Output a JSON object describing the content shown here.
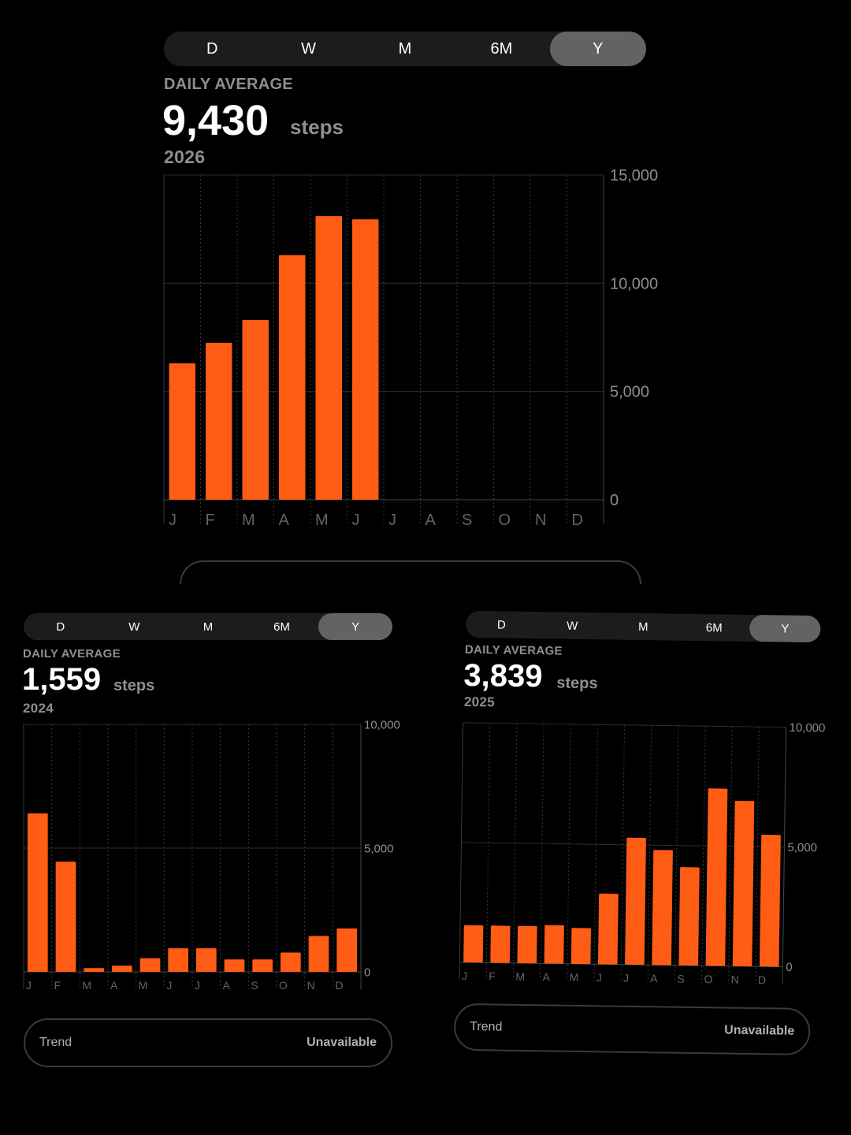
{
  "segments": [
    "D",
    "W",
    "M",
    "6M",
    "Y"
  ],
  "selected_segment": "Y",
  "accent_color": "#ff5c16",
  "main": {
    "label": "DAILY AVERAGE",
    "value": "9,430",
    "unit": "steps",
    "period": "2026"
  },
  "left": {
    "label": "DAILY AVERAGE",
    "value": "1,559",
    "unit": "steps",
    "period": "2024",
    "trend_label": "Trend",
    "trend_value": "Unavailable"
  },
  "right": {
    "label": "DAILY AVERAGE",
    "value": "3,839",
    "unit": "steps",
    "period": "2025",
    "trend_label": "Trend",
    "trend_value": "Unavailable"
  },
  "chart_data": [
    {
      "type": "bar",
      "categories": [
        "J",
        "F",
        "M",
        "A",
        "M",
        "J",
        "J",
        "A",
        "S",
        "O",
        "N",
        "D"
      ],
      "values": [
        6300,
        7250,
        8300,
        11300,
        13100,
        12950,
        null,
        null,
        null,
        null,
        null,
        null
      ],
      "ylim": [
        0,
        15000
      ],
      "yticks": [
        "0",
        "5,000",
        "10,000",
        "15,000"
      ],
      "ytick_values": [
        0,
        5000,
        10000,
        15000
      ],
      "grid": true
    },
    {
      "type": "bar",
      "categories": [
        "J",
        "F",
        "M",
        "A",
        "M",
        "J",
        "J",
        "A",
        "S",
        "O",
        "N",
        "D"
      ],
      "values": [
        6400,
        4450,
        150,
        250,
        550,
        950,
        950,
        500,
        500,
        780,
        1450,
        1750
      ],
      "ylim": [
        0,
        10000
      ],
      "yticks": [
        "0",
        "5,000",
        "10,000"
      ],
      "ytick_values": [
        0,
        5000,
        10000
      ],
      "grid": true
    },
    {
      "type": "bar",
      "categories": [
        "J",
        "F",
        "M",
        "A",
        "M",
        "J",
        "J",
        "A",
        "S",
        "O",
        "N",
        "D"
      ],
      "values": [
        1550,
        1550,
        1550,
        1600,
        1500,
        2950,
        5300,
        4800,
        4100,
        7400,
        6900,
        5500
      ],
      "ylim": [
        0,
        10000
      ],
      "yticks": [
        "0",
        "5,000",
        "10,000"
      ],
      "ytick_values": [
        0,
        5000,
        10000
      ],
      "grid": true
    }
  ]
}
